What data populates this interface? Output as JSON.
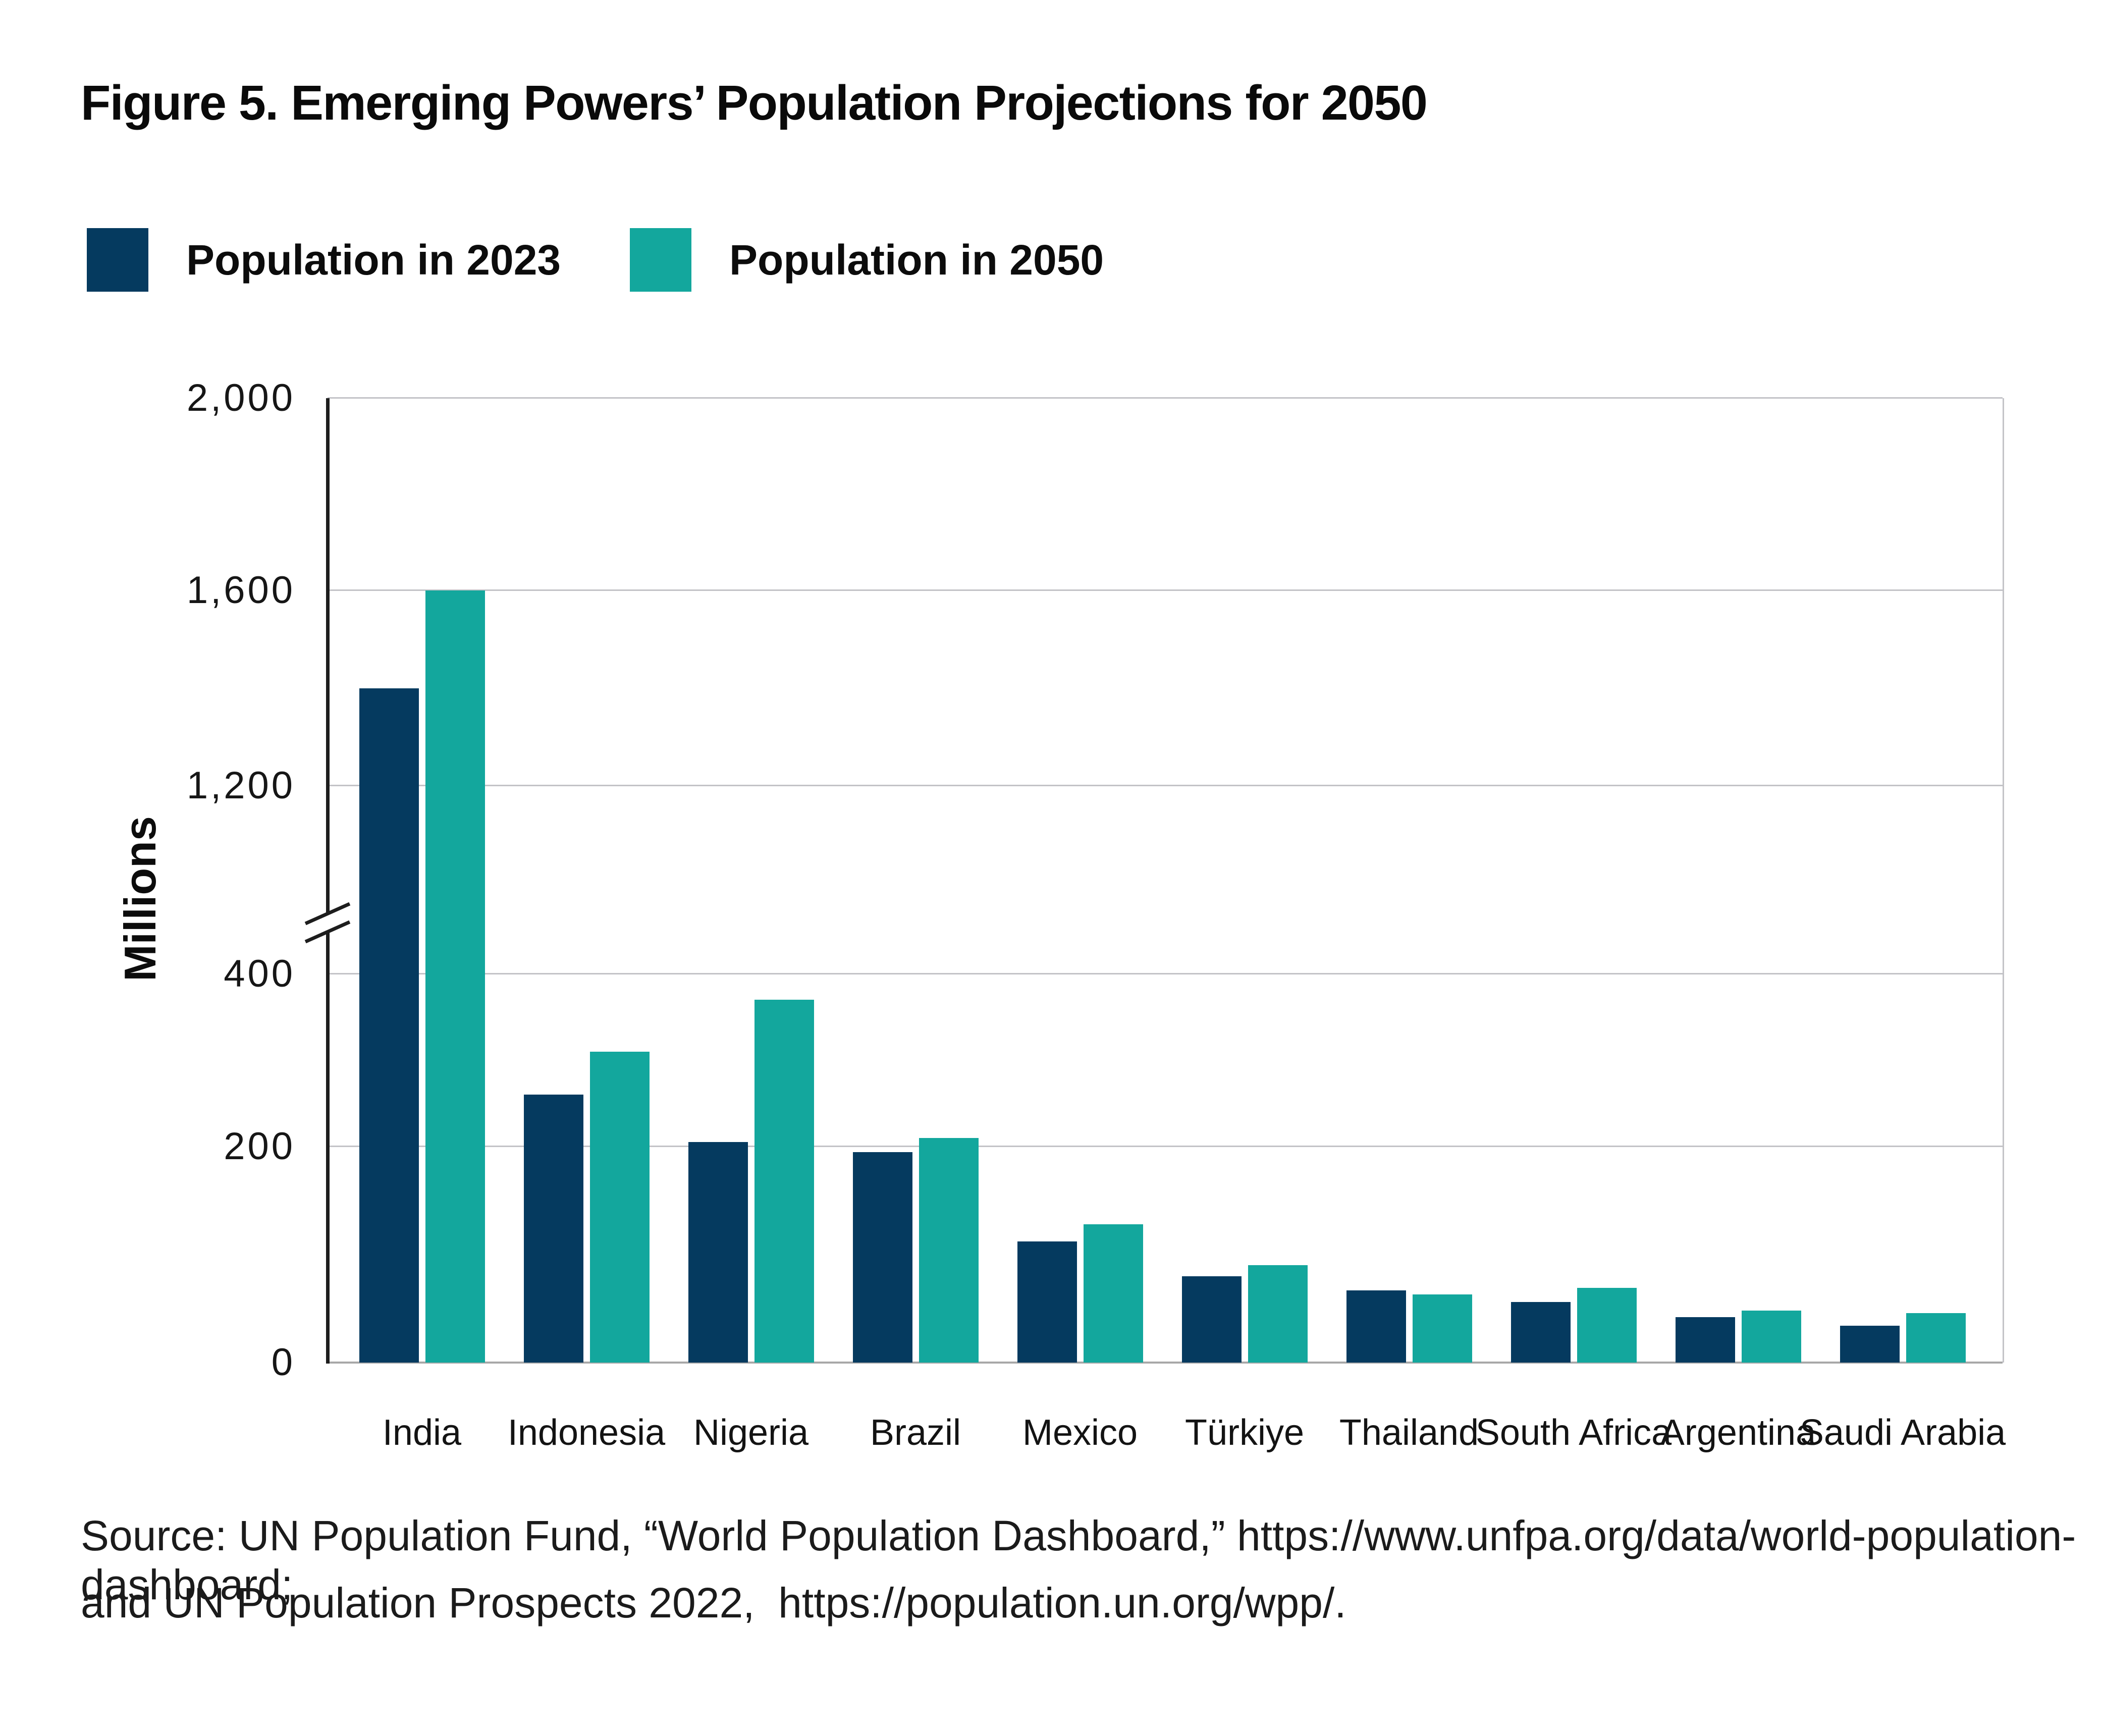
{
  "figure": {
    "title": "Figure 5. Emerging Powers’ Population Projections for 2050",
    "source_line1": "Source: UN Population Fund, “World Population Dashboard,” https://www.unfpa.org/data/world-population-dashboard;",
    "source_line2": "and UN Population Prospects 2022,  https://population.un.org/wpp/."
  },
  "legend": [
    {
      "label": "Population in 2023",
      "color": "#053A5F"
    },
    {
      "label": "Population in 2050",
      "color": "#13A79D"
    }
  ],
  "colors": {
    "navy_2023": "#053A5F",
    "teal_2050": "#13A79D",
    "gridline": "#c3c3c7",
    "axis": "#1d1d1d",
    "baseline": "#a8a8a8"
  },
  "chart_data": {
    "type": "bar",
    "title": "Figure 5. Emerging Powers’ Population Projections for 2050",
    "xlabel": "",
    "ylabel": "Millions",
    "unit": "millions of people",
    "grid": true,
    "legend_position": "top-left",
    "y_axis_broken": true,
    "y_axis_break_between": [
      400,
      1200
    ],
    "ylim": [
      0,
      2000
    ],
    "y_ticks": [
      {
        "label": "2,000",
        "value": 2000
      },
      {
        "label": "1,600",
        "value": 1600
      },
      {
        "label": "1,200",
        "value": 1200
      },
      {
        "label": "400",
        "value": 400
      },
      {
        "label": "200",
        "value": 200
      },
      {
        "label": "0",
        "value": 0
      }
    ],
    "categories": [
      "India",
      "Indonesia",
      "Nigeria",
      "Brazil",
      "Mexico",
      "Türkiye",
      "Thailand",
      "South Africa",
      "Argentina",
      "Saudi Arabia"
    ],
    "series": [
      {
        "name": "Population in 2023",
        "color": "#053A5F",
        "values": [
          1400,
          260,
          205,
          195,
          112,
          80,
          67,
          56,
          42,
          34
        ]
      },
      {
        "name": "Population in 2050",
        "color": "#13A79D",
        "values": [
          1600,
          310,
          370,
          210,
          128,
          90,
          63,
          69,
          48,
          46
        ]
      }
    ]
  }
}
